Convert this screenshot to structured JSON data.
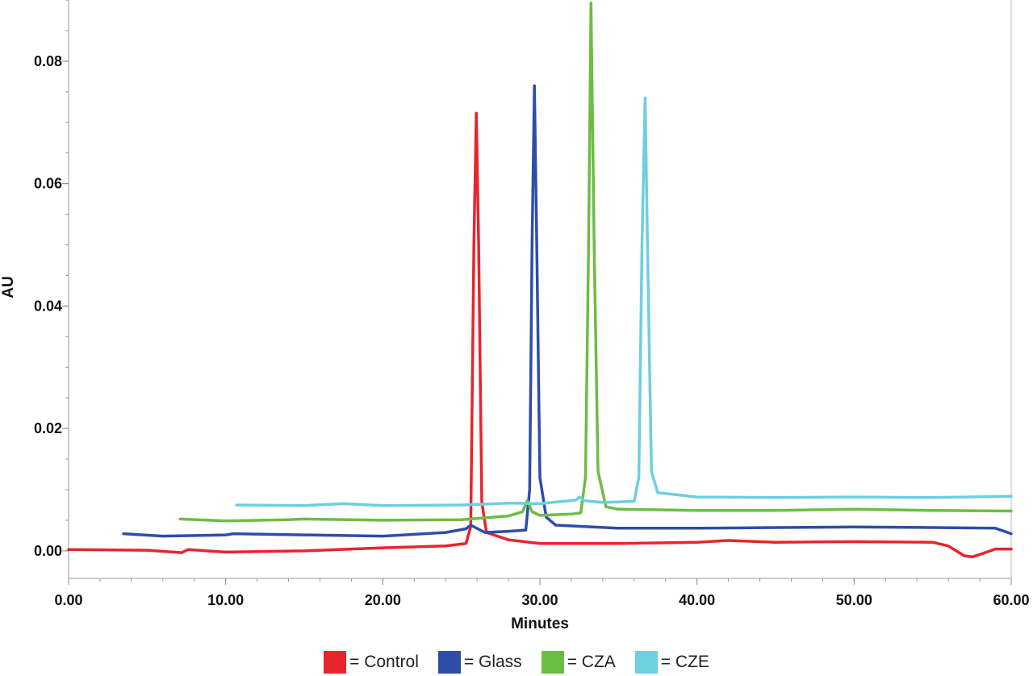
{
  "chart_data": {
    "type": "line",
    "xlabel": "Minutes",
    "ylabel": "AU",
    "xlim": [
      0,
      60
    ],
    "ylim": [
      -0.0045,
      0.09
    ],
    "xticks": [
      "0.00",
      "10.00",
      "20.00",
      "30.00",
      "40.00",
      "50.00",
      "60.00"
    ],
    "yticks": [
      "0.00",
      "0.02",
      "0.04",
      "0.06",
      "0.08"
    ],
    "grid": false,
    "legend_position": "bottom",
    "series": [
      {
        "name": "Control",
        "color": "#e8242c",
        "points": [
          [
            0,
            0.0002
          ],
          [
            5,
            0.0001
          ],
          [
            7.2,
            -0.0003
          ],
          [
            7.6,
            0.0002
          ],
          [
            10,
            -0.0002
          ],
          [
            15,
            0.0
          ],
          [
            20,
            0.0005
          ],
          [
            24,
            0.0008
          ],
          [
            25.3,
            0.0012
          ],
          [
            25.6,
            0.004
          ],
          [
            25.8,
            0.05
          ],
          [
            25.95,
            0.0715
          ],
          [
            26.1,
            0.05
          ],
          [
            26.3,
            0.008
          ],
          [
            26.6,
            0.003
          ],
          [
            28,
            0.0018
          ],
          [
            30,
            0.0012
          ],
          [
            35,
            0.0012
          ],
          [
            40,
            0.0014
          ],
          [
            42,
            0.0017
          ],
          [
            45,
            0.0014
          ],
          [
            50,
            0.0015
          ],
          [
            55,
            0.0014
          ],
          [
            56,
            0.0008
          ],
          [
            57,
            -0.0008
          ],
          [
            57.5,
            -0.001
          ],
          [
            58,
            -0.0006
          ],
          [
            59,
            0.0003
          ],
          [
            60,
            0.0003
          ]
        ]
      },
      {
        "name": "Glass",
        "color": "#2e4da8",
        "points": [
          [
            3.5,
            0.0028
          ],
          [
            6,
            0.0024
          ],
          [
            10,
            0.0026
          ],
          [
            10.5,
            0.0028
          ],
          [
            15,
            0.0026
          ],
          [
            20,
            0.0024
          ],
          [
            24,
            0.003
          ],
          [
            25.3,
            0.0036
          ],
          [
            25.6,
            0.0042
          ],
          [
            26.5,
            0.003
          ],
          [
            28,
            0.0032
          ],
          [
            29.1,
            0.0034
          ],
          [
            29.35,
            0.01
          ],
          [
            29.5,
            0.05
          ],
          [
            29.65,
            0.076
          ],
          [
            29.8,
            0.05
          ],
          [
            30,
            0.012
          ],
          [
            30.4,
            0.0055
          ],
          [
            31,
            0.0042
          ],
          [
            35,
            0.0037
          ],
          [
            40,
            0.0037
          ],
          [
            45,
            0.0038
          ],
          [
            50,
            0.0039
          ],
          [
            55,
            0.0038
          ],
          [
            59,
            0.0037
          ],
          [
            60,
            0.0028
          ]
        ]
      },
      {
        "name": "CZA",
        "color": "#6cbd44",
        "points": [
          [
            7.1,
            0.0052
          ],
          [
            10,
            0.0049
          ],
          [
            14,
            0.0051
          ],
          [
            15,
            0.0052
          ],
          [
            20,
            0.005
          ],
          [
            25,
            0.0051
          ],
          [
            28,
            0.0057
          ],
          [
            28.9,
            0.0064
          ],
          [
            29.2,
            0.0082
          ],
          [
            29.5,
            0.0064
          ],
          [
            30,
            0.0058
          ],
          [
            32,
            0.006
          ],
          [
            32.6,
            0.0062
          ],
          [
            32.9,
            0.012
          ],
          [
            33.1,
            0.05
          ],
          [
            33.25,
            0.0895
          ],
          [
            33.45,
            0.05
          ],
          [
            33.7,
            0.013
          ],
          [
            34.2,
            0.0072
          ],
          [
            35,
            0.0068
          ],
          [
            40,
            0.0066
          ],
          [
            45,
            0.0066
          ],
          [
            50,
            0.0068
          ],
          [
            55,
            0.0066
          ],
          [
            60,
            0.0065
          ]
        ]
      },
      {
        "name": "CZE",
        "color": "#6dcfe0",
        "points": [
          [
            10.7,
            0.0075
          ],
          [
            15,
            0.0074
          ],
          [
            17.5,
            0.0077
          ],
          [
            20,
            0.0074
          ],
          [
            25,
            0.0075
          ],
          [
            28,
            0.0078
          ],
          [
            30,
            0.0077
          ],
          [
            32.3,
            0.0083
          ],
          [
            32.5,
            0.0088
          ],
          [
            32.8,
            0.0082
          ],
          [
            34,
            0.0079
          ],
          [
            36,
            0.0081
          ],
          [
            36.3,
            0.012
          ],
          [
            36.5,
            0.05
          ],
          [
            36.7,
            0.074
          ],
          [
            36.85,
            0.05
          ],
          [
            37.1,
            0.013
          ],
          [
            37.5,
            0.0095
          ],
          [
            40,
            0.0088
          ],
          [
            45,
            0.0087
          ],
          [
            50,
            0.0088
          ],
          [
            55,
            0.0087
          ],
          [
            60,
            0.0089
          ]
        ]
      }
    ]
  }
}
